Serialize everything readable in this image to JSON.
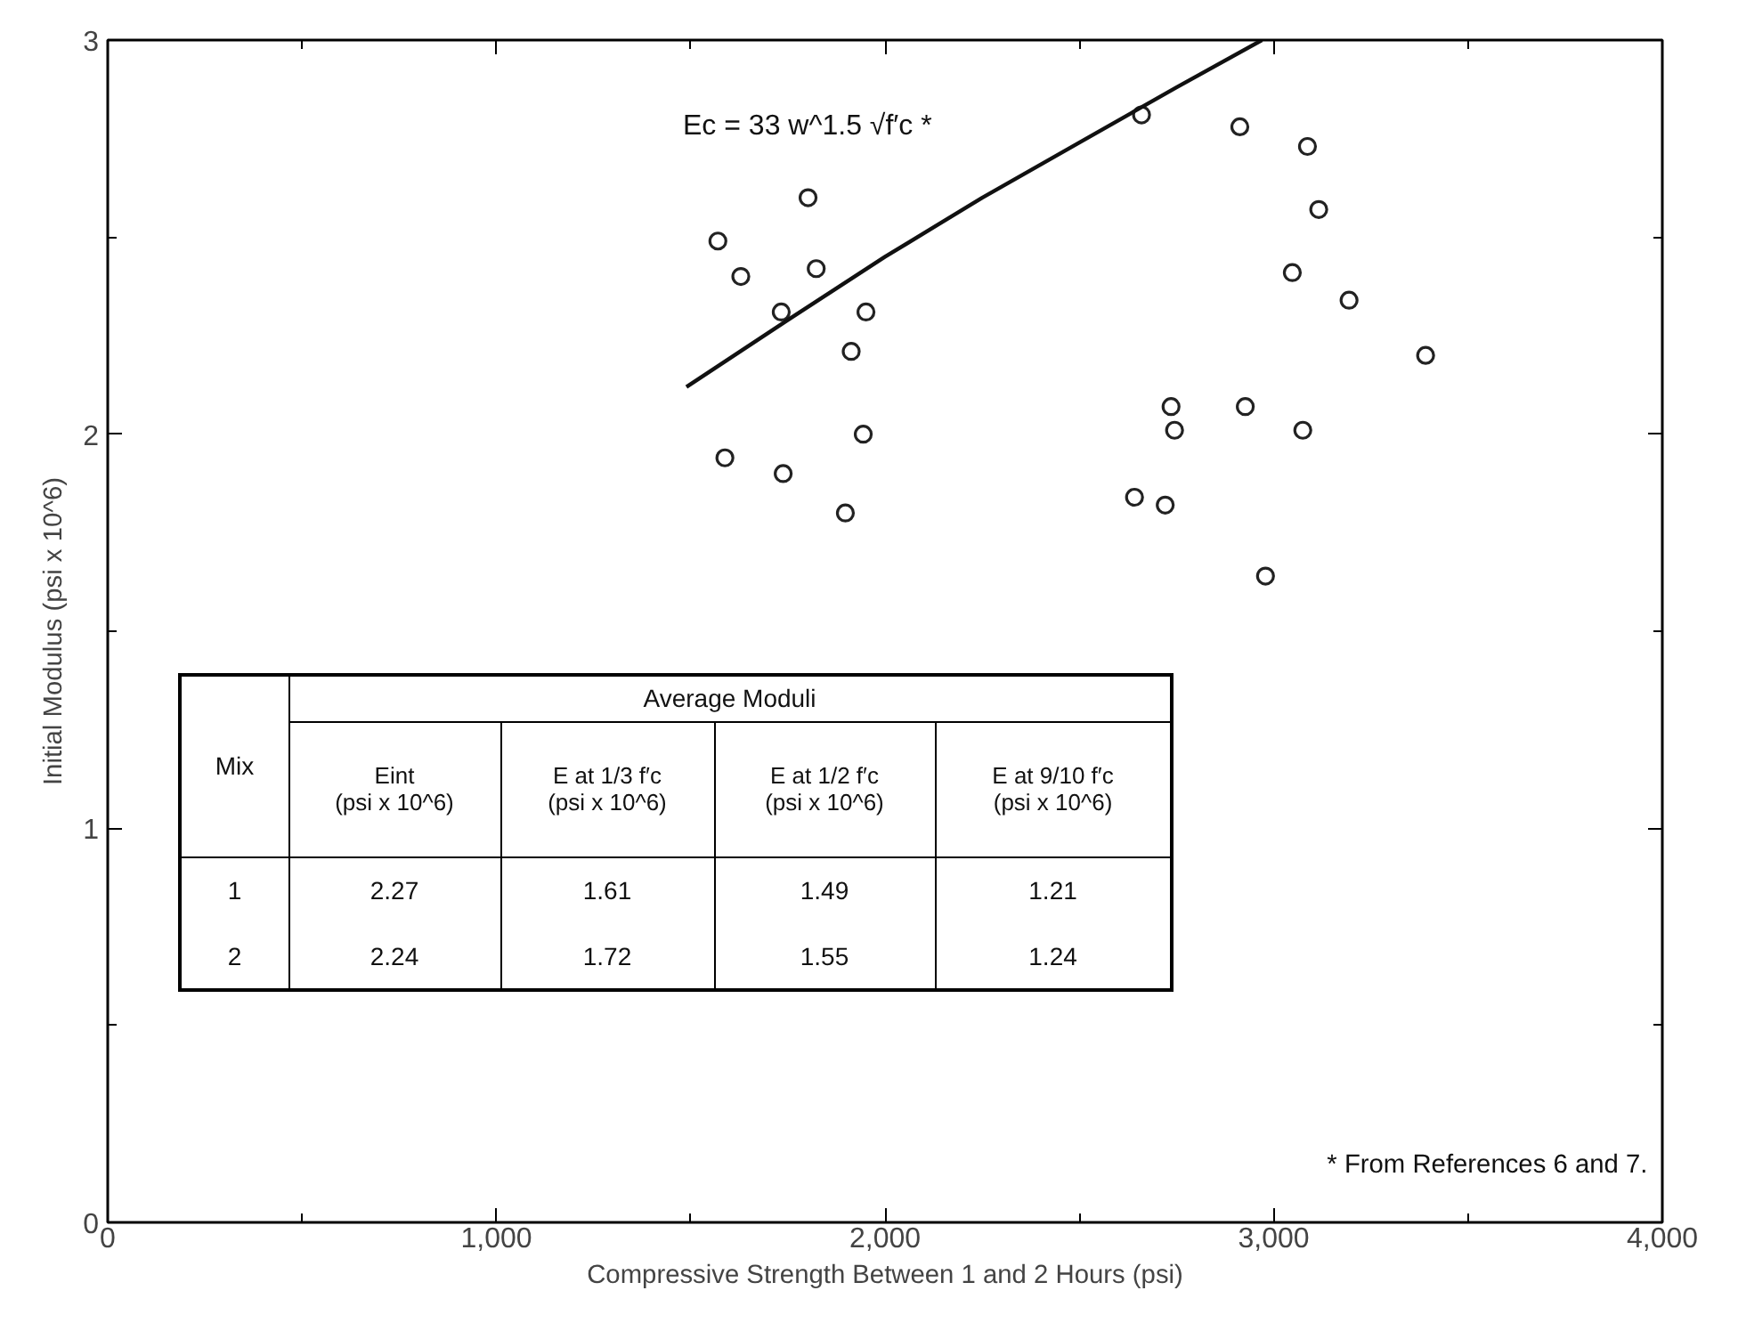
{
  "chart_data": {
    "type": "scatter",
    "xlabel": "Compressive Strength Between 1 and 2 Hours (psi)",
    "ylabel": "Initial Modulus (psi x 10^6)",
    "xlim": [
      0,
      4000
    ],
    "xticks": [
      0,
      {
        "value": 500,
        "label": null
      },
      {
        "value": 1000,
        "label": "1,000"
      },
      {
        "value": 1500,
        "label": null
      },
      {
        "value": 2000,
        "label": "2,000"
      },
      {
        "value": 2500,
        "label": null
      },
      {
        "value": 3000,
        "label": "3,000"
      },
      {
        "value": 3500,
        "label": null
      },
      {
        "value": 4000,
        "label": "4,000"
      }
    ],
    "ylim": [
      0,
      3
    ],
    "yticks": [
      0,
      {
        "value": 0.5,
        "label": null
      },
      1,
      {
        "value": 1.5,
        "label": null
      },
      2,
      {
        "value": 2.5,
        "label": null
      },
      3
    ],
    "grid": false,
    "series": [
      {
        "marker": "circle",
        "color": "#222222",
        "x": [
          1802,
          1570,
          1629,
          1823,
          1733,
          1951,
          1913,
          1944,
          1588,
          1738,
          1898,
          2660,
          2736,
          2745,
          2642,
          2721,
          2913,
          3087,
          3116,
          3048,
          3194,
          3391,
          2927,
          3075,
          2979
        ],
        "values": [
          2.6,
          2.49,
          2.4,
          2.42,
          2.31,
          2.31,
          2.21,
          2.0,
          1.94,
          1.9,
          1.8,
          2.81,
          2.07,
          2.01,
          1.84,
          1.82,
          2.78,
          2.73,
          2.57,
          2.41,
          2.34,
          2.2,
          2.07,
          2.01,
          1.64
        ]
      },
      {
        "type": "line",
        "marker": "none",
        "color": "#111111",
        "line_style": "solid",
        "x": [
          1489,
          1750,
          2000,
          2250,
          2500,
          2750,
          2970
        ],
        "values": [
          2.12,
          2.29,
          2.45,
          2.6,
          2.74,
          2.88,
          3.0
        ]
      }
    ],
    "annotations": [
      "Ec = 33 w^1.5 √f′c *",
      "Mix",
      "Average Moduli",
      "Eint\n(psi x 10^6)",
      "E at 1/3 f′c\n(psi x 10^6)",
      "E at 1/2 f′c\n(psi x 10^6)",
      "E at 9/10 f′c\n(psi x 10^6)",
      "1",
      "2.27",
      "1.61",
      "1.49",
      "1.21",
      "2",
      "2.24",
      "1.72",
      "1.55",
      "1.24",
      "* From References 6 and 7."
    ]
  }
}
